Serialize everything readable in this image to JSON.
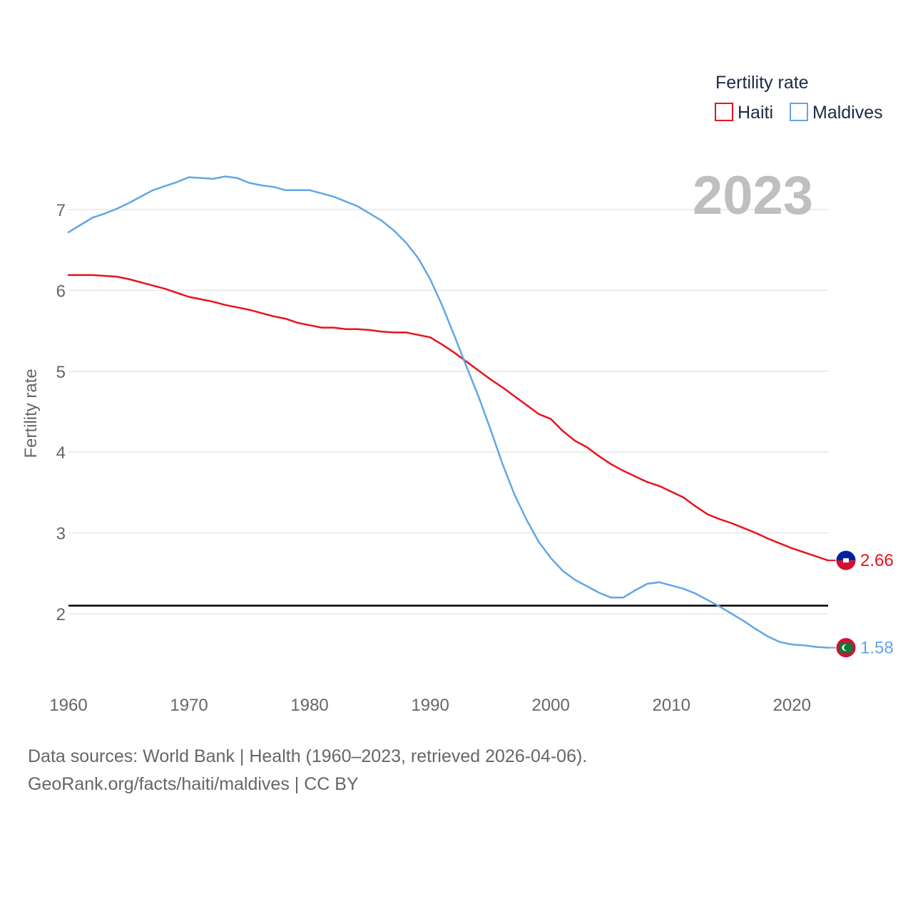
{
  "chart_data": {
    "type": "line",
    "ylabel": "Fertility rate",
    "xlabel": "",
    "xlim": [
      1960,
      2023
    ],
    "ylim": [
      1.3,
      7.6
    ],
    "x_ticks": [
      1960,
      1970,
      1980,
      1990,
      2000,
      2010,
      2020
    ],
    "y_ticks": [
      2,
      3,
      4,
      5,
      6,
      7
    ],
    "year_label": "2023",
    "legend": {
      "title": "Fertility rate",
      "position": "top-right"
    },
    "reference_line": {
      "value": 2.1,
      "color": "#000000"
    },
    "x": [
      1960,
      1961,
      1962,
      1963,
      1964,
      1965,
      1966,
      1967,
      1968,
      1969,
      1970,
      1971,
      1972,
      1973,
      1974,
      1975,
      1976,
      1977,
      1978,
      1979,
      1980,
      1981,
      1982,
      1983,
      1984,
      1985,
      1986,
      1987,
      1988,
      1989,
      1990,
      1991,
      1992,
      1993,
      1994,
      1995,
      1996,
      1997,
      1998,
      1999,
      2000,
      2001,
      2002,
      2003,
      2004,
      2005,
      2006,
      2007,
      2008,
      2009,
      2010,
      2011,
      2012,
      2013,
      2014,
      2015,
      2016,
      2017,
      2018,
      2019,
      2020,
      2021,
      2022,
      2023
    ],
    "series": [
      {
        "name": "Haiti",
        "color": "#e8121a",
        "end_label": "2.66",
        "flag": "haiti-flag",
        "values": [
          6.19,
          6.19,
          6.19,
          6.18,
          6.17,
          6.14,
          6.1,
          6.06,
          6.02,
          5.97,
          5.92,
          5.89,
          5.86,
          5.82,
          5.79,
          5.76,
          5.72,
          5.68,
          5.65,
          5.6,
          5.57,
          5.54,
          5.54,
          5.52,
          5.52,
          5.51,
          5.49,
          5.48,
          5.48,
          5.45,
          5.42,
          5.33,
          5.23,
          5.12,
          5.01,
          4.9,
          4.8,
          4.69,
          4.58,
          4.47,
          4.41,
          4.26,
          4.14,
          4.06,
          3.95,
          3.85,
          3.77,
          3.7,
          3.63,
          3.58,
          3.51,
          3.44,
          3.33,
          3.23,
          3.17,
          3.12,
          3.06,
          3.0,
          2.93,
          2.87,
          2.81,
          2.76,
          2.71,
          2.66
        ]
      },
      {
        "name": "Maldives",
        "color": "#62a6e5",
        "end_label": "1.58",
        "flag": "maldives-flag",
        "values": [
          6.72,
          6.81,
          6.9,
          6.95,
          7.01,
          7.08,
          7.16,
          7.24,
          7.29,
          7.34,
          7.4,
          7.39,
          7.38,
          7.41,
          7.39,
          7.33,
          7.3,
          7.28,
          7.24,
          7.24,
          7.24,
          7.2,
          7.16,
          7.1,
          7.04,
          6.95,
          6.86,
          6.74,
          6.59,
          6.4,
          6.14,
          5.81,
          5.44,
          5.06,
          4.69,
          4.28,
          3.85,
          3.47,
          3.16,
          2.89,
          2.69,
          2.53,
          2.42,
          2.34,
          2.26,
          2.2,
          2.2,
          2.29,
          2.37,
          2.39,
          2.35,
          2.31,
          2.25,
          2.17,
          2.09,
          2.0,
          1.91,
          1.81,
          1.72,
          1.65,
          1.62,
          1.61,
          1.59,
          1.58
        ]
      }
    ]
  },
  "footer": {
    "source_line": "Data sources: World Bank | Health (1960–2023, retrieved 2026-04-06).",
    "credit_line": "GeoRank.org/facts/haiti/maldives | CC BY"
  }
}
